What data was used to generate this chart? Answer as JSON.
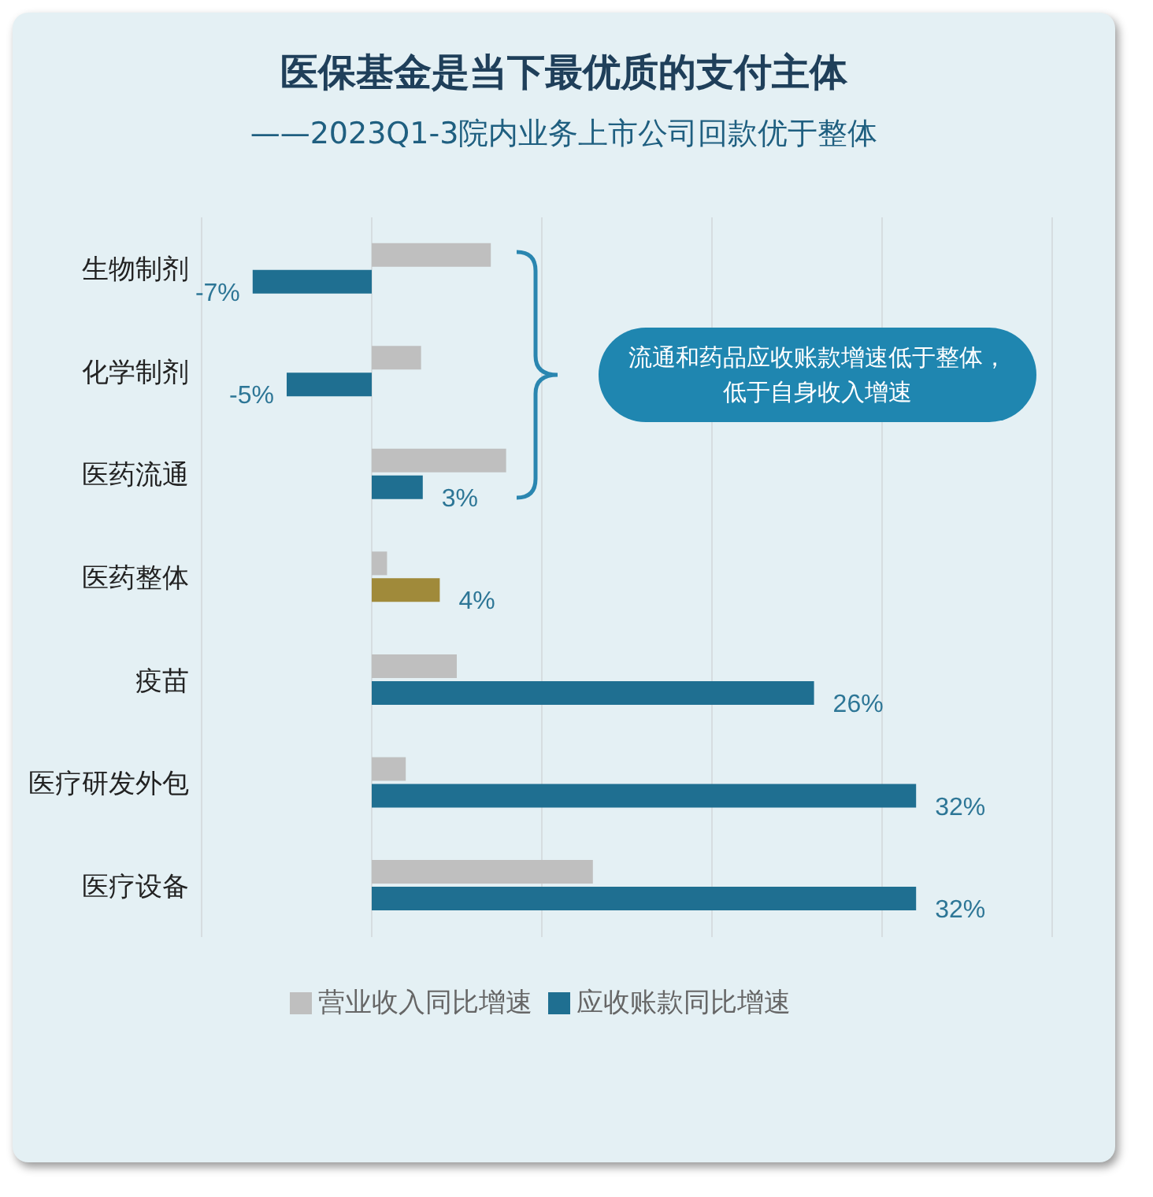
{
  "chart_data": {
    "type": "bar",
    "orientation": "horizontal",
    "title": "医保基金是当下最优质的支付主体",
    "subtitle": "——2023Q1-3院内业务上市公司回款优于整体",
    "categories": [
      "生物制剂",
      "化学制剂",
      "医药流通",
      "医药整体",
      "疫苗",
      "医疗研发外包",
      "医疗设备"
    ],
    "series": [
      {
        "name": "营业收入同比增速",
        "color": "#bfbfbf",
        "values": [
          7,
          2.9,
          7.9,
          0.9,
          5,
          2,
          13
        ]
      },
      {
        "name": "应收账款同比增速",
        "color": "#1f6f91",
        "colors": [
          "#1f6f91",
          "#1f6f91",
          "#1f6f91",
          "#a08a3a",
          "#1f6f91",
          "#1f6f91",
          "#1f6f91"
        ],
        "values": [
          -7,
          -5,
          3,
          4,
          26,
          32,
          32
        ],
        "value_labels": [
          "-7%",
          "-5%",
          "3%",
          "4%",
          "26%",
          "32%",
          "32%"
        ]
      }
    ],
    "xlim": [
      -10,
      40
    ],
    "xticks": [
      {
        "value": -10,
        "label": null
      },
      {
        "value": 0,
        "label": null
      },
      {
        "value": 10,
        "label": null
      },
      {
        "value": 20,
        "label": null
      },
      {
        "value": 30,
        "label": null
      },
      {
        "value": 40,
        "label": null
      }
    ],
    "grid": "x",
    "legend": "bottom",
    "tick_labels": "y",
    "annotations": [
      "流通和药品应收账款增速低于整体，低于自身收入增速"
    ]
  }
}
